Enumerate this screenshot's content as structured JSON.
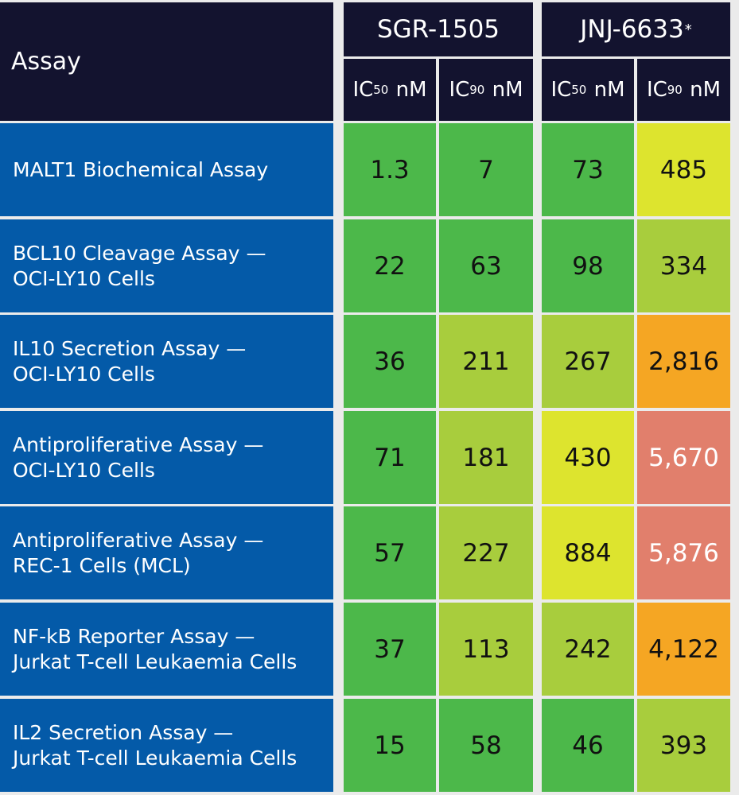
{
  "chart_data": {
    "type": "table",
    "column_header": "Assay",
    "groups": [
      {
        "name": "SGR-1505",
        "note": "",
        "metrics": [
          {
            "base": "IC",
            "sub": "50",
            "unit": "nM"
          },
          {
            "base": "IC",
            "sub": "90",
            "unit": "nM"
          }
        ]
      },
      {
        "name": "JNJ-6633",
        "note": "*",
        "metrics": [
          {
            "base": "IC",
            "sub": "50",
            "unit": "nM"
          },
          {
            "base": "IC",
            "sub": "90",
            "unit": "nM"
          }
        ]
      }
    ],
    "rows": [
      {
        "label": [
          "MALT1 Biochemical Assay"
        ],
        "values": [
          "1.3",
          "7",
          "73",
          "485"
        ],
        "colors": [
          "#4cb84a",
          "#4cb84a",
          "#4cb84a",
          "#dde42e"
        ]
      },
      {
        "label": [
          "BCL10 Cleavage Assay —",
          "OCI-LY10 Cells"
        ],
        "values": [
          "22",
          "63",
          "98",
          "334"
        ],
        "colors": [
          "#4cb84a",
          "#4cb84a",
          "#4cb84a",
          "#a8cd3d"
        ]
      },
      {
        "label": [
          "IL10 Secretion Assay —",
          "OCI-LY10 Cells"
        ],
        "values": [
          "36",
          "211",
          "267",
          "2,816"
        ],
        "colors": [
          "#4cb84a",
          "#a8cd3d",
          "#a8cd3d",
          "#f5a623"
        ]
      },
      {
        "label": [
          "Antiproliferative Assay —",
          "OCI-LY10 Cells"
        ],
        "values": [
          "71",
          "181",
          "430",
          "5,670"
        ],
        "colors": [
          "#4cb84a",
          "#a8cd3d",
          "#dde42e",
          "#e17f6c"
        ]
      },
      {
        "label": [
          "Antiproliferative Assay —",
          "REC-1 Cells (MCL)"
        ],
        "values": [
          "57",
          "227",
          "884",
          "5,876"
        ],
        "colors": [
          "#4cb84a",
          "#a8cd3d",
          "#dde42e",
          "#e17f6c"
        ]
      },
      {
        "label": [
          "NF-kB Reporter Assay —",
          "Jurkat T-cell Leukaemia Cells"
        ],
        "values": [
          "37",
          "113",
          "242",
          "4,122"
        ],
        "colors": [
          "#4cb84a",
          "#a8cd3d",
          "#a8cd3d",
          "#f5a623"
        ]
      },
      {
        "label": [
          "IL2 Secretion Assay —",
          "Jurkat T-cell Leukaemia Cells"
        ],
        "values": [
          "15",
          "58",
          "46",
          "393"
        ],
        "colors": [
          "#4cb84a",
          "#4cb84a",
          "#4cb84a",
          "#a8cd3d"
        ]
      }
    ]
  },
  "colors": {
    "header_bg": "#13132f",
    "row_label_bg": "#045aa8",
    "background": "#ebebeb"
  }
}
